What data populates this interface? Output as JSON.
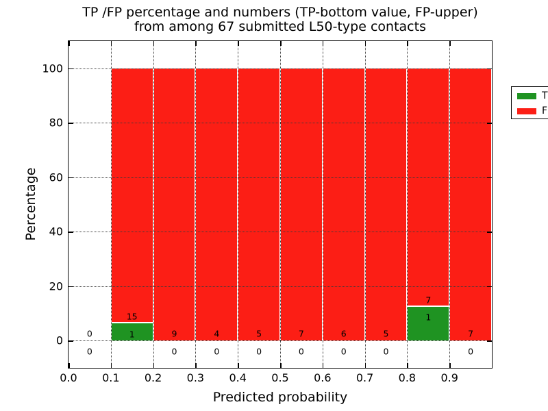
{
  "title": {
    "line1": "TP /FP percentage and numbers (TP-bottom value, FP-upper)",
    "line2": "from among 67 submitted L50-type contacts"
  },
  "chart_data": {
    "type": "bar",
    "stacked": true,
    "title": "TP /FP percentage and numbers (TP-bottom value, FP-upper)\nfrom among 67 submitted L50-type contacts",
    "xlabel": "Predicted probability",
    "ylabel": "Percentage",
    "total_contacts": 67,
    "xlim": [
      0.0,
      1.0
    ],
    "ylim": [
      -10,
      110
    ],
    "grid": "dotted",
    "xticks": [
      0.0,
      0.1,
      0.2,
      0.3,
      0.4,
      0.5,
      0.6,
      0.7,
      0.8,
      0.9
    ],
    "xtick_labels": [
      "0.0",
      "0.1",
      "0.2",
      "0.3",
      "0.4",
      "0.5",
      "0.6",
      "0.7",
      "0.8",
      "0.9"
    ],
    "yticks": [
      0,
      20,
      40,
      60,
      80,
      100
    ],
    "ytick_labels": [
      "0",
      "20",
      "40",
      "60",
      "80",
      "100"
    ],
    "colors": {
      "tp": "#1f9322",
      "fp": "#fc1e15"
    },
    "legend": {
      "position": "upper-right",
      "entries": [
        {
          "label": "TP",
          "color": "#1f9322"
        },
        {
          "label": "FP",
          "color": "#fc1e15"
        }
      ]
    },
    "bins": [
      {
        "range": [
          0.0,
          0.1
        ],
        "tp": 0,
        "fp": 0,
        "tp_pct": 0,
        "fp_pct": 0
      },
      {
        "range": [
          0.1,
          0.2
        ],
        "tp": 1,
        "fp": 15,
        "tp_pct": 6.25,
        "fp_pct": 93.75
      },
      {
        "range": [
          0.2,
          0.3
        ],
        "tp": 0,
        "fp": 9,
        "tp_pct": 0,
        "fp_pct": 100
      },
      {
        "range": [
          0.3,
          0.4
        ],
        "tp": 0,
        "fp": 4,
        "tp_pct": 0,
        "fp_pct": 100
      },
      {
        "range": [
          0.4,
          0.5
        ],
        "tp": 0,
        "fp": 5,
        "tp_pct": 0,
        "fp_pct": 100
      },
      {
        "range": [
          0.5,
          0.6
        ],
        "tp": 0,
        "fp": 7,
        "tp_pct": 0,
        "fp_pct": 100
      },
      {
        "range": [
          0.6,
          0.7
        ],
        "tp": 0,
        "fp": 6,
        "tp_pct": 0,
        "fp_pct": 100
      },
      {
        "range": [
          0.7,
          0.8
        ],
        "tp": 0,
        "fp": 5,
        "tp_pct": 0,
        "fp_pct": 100
      },
      {
        "range": [
          0.8,
          0.9
        ],
        "tp": 1,
        "fp": 7,
        "tp_pct": 12.5,
        "fp_pct": 87.5
      },
      {
        "range": [
          0.9,
          1.0
        ],
        "tp": 0,
        "fp": 7,
        "tp_pct": 0,
        "fp_pct": 100
      }
    ]
  }
}
